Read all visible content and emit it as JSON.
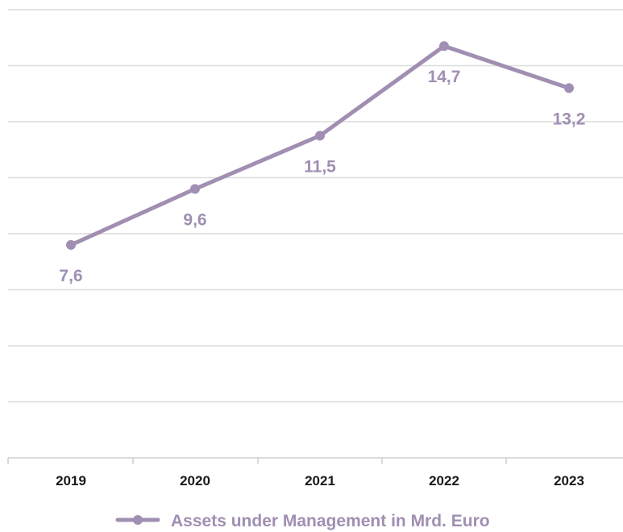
{
  "chart_data": {
    "type": "line",
    "categories": [
      "2019",
      "2020",
      "2021",
      "2022",
      "2023"
    ],
    "series": [
      {
        "name": "Assets under Management in Mrd. Euro",
        "values": [
          7.6,
          9.6,
          11.5,
          14.7,
          13.2
        ],
        "value_labels": [
          "7,6",
          "9,6",
          "11,5",
          "14,7",
          "13,2"
        ],
        "color": "#a08fb2"
      }
    ],
    "ylim": [
      0,
      16
    ],
    "y_grid_step": 2,
    "grid": "horizontal",
    "y_tick_labels_visible": false,
    "legend_position": "bottom-center"
  }
}
